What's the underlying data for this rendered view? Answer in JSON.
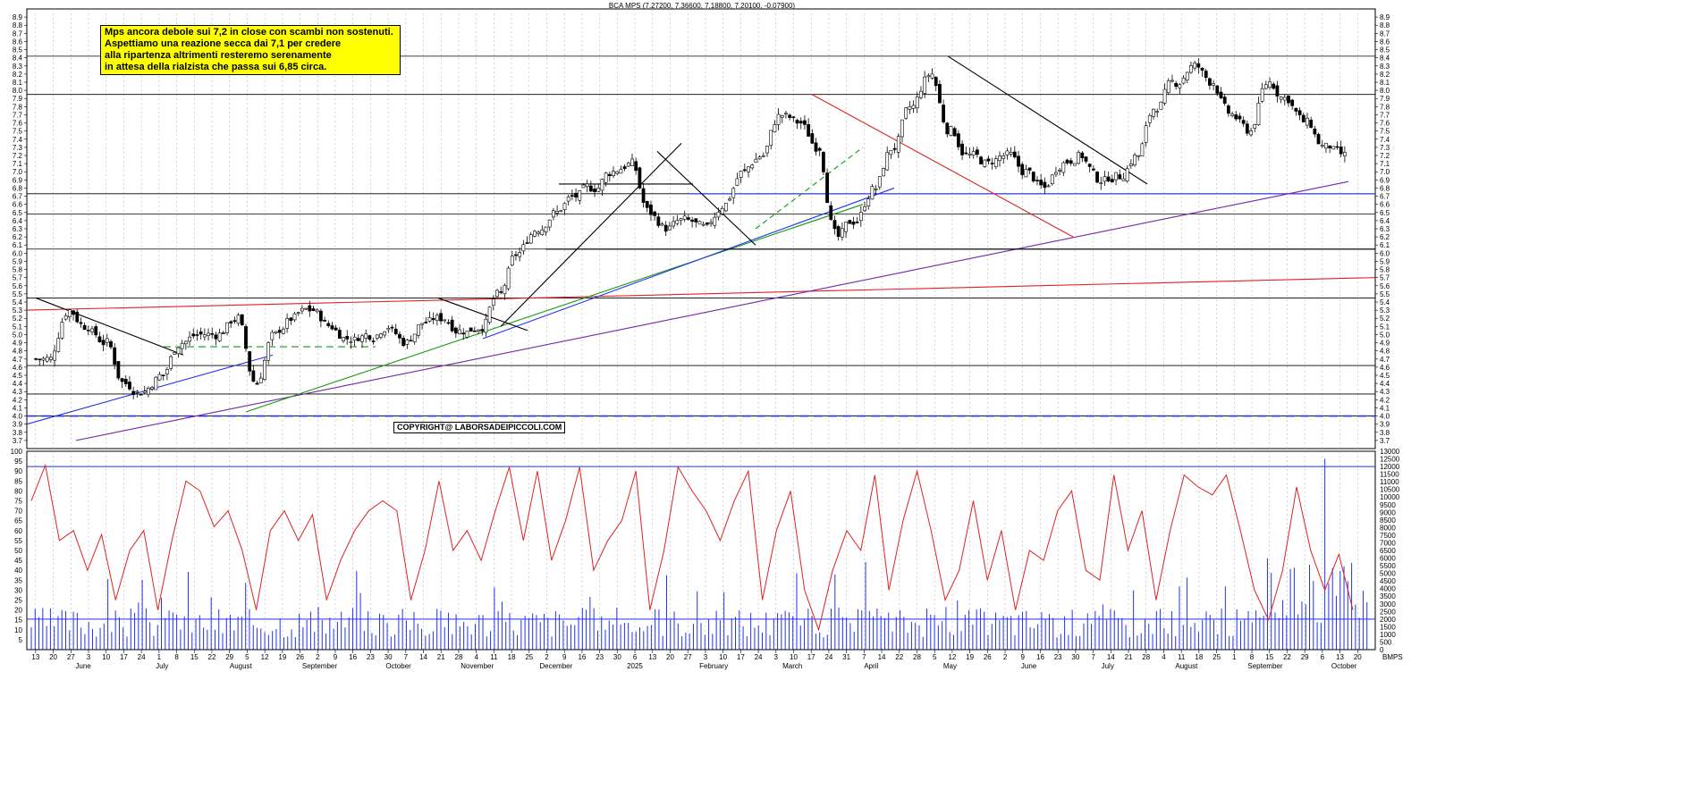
{
  "chart_data": [
    {
      "type": "candlestick",
      "title": "BCA MPS (7.27200, 7.36600, 7.18800, 7.20100, -0.07900)",
      "ylim": [
        3.6,
        9.0
      ],
      "y_ticks": [
        "3.7",
        "3.8",
        "3.9",
        "4.0",
        "4.1",
        "4.2",
        "4.3",
        "4.4",
        "4.5",
        "4.6",
        "4.7",
        "4.8",
        "4.9",
        "5.0",
        "5.1",
        "5.2",
        "5.3",
        "5.4",
        "5.5",
        "5.6",
        "5.7",
        "5.8",
        "5.9",
        "6.0",
        "6.1",
        "6.2",
        "6.3",
        "6.4",
        "6.5",
        "6.6",
        "6.7",
        "6.8",
        "6.9",
        "7.0",
        "7.1",
        "7.2",
        "7.3",
        "7.4",
        "7.5",
        "7.6",
        "7.7",
        "7.8",
        "7.9",
        "8.0",
        "8.1",
        "8.2",
        "8.3",
        "8.4",
        "8.5",
        "8.6",
        "8.7",
        "8.8",
        "8.9"
      ],
      "grid": true,
      "approx_weekly_closes": [
        4.7,
        5.3,
        5.1,
        4.9,
        4.4,
        4.3,
        4.5,
        4.9,
        5.0,
        5.0,
        5.2,
        4.4,
        5.0,
        5.2,
        5.3,
        5.1,
        4.95,
        5.0,
        5.1,
        4.9,
        5.15,
        5.2,
        5.05,
        5.1,
        5.5,
        6.0,
        6.3,
        6.5,
        6.7,
        6.8,
        7.0,
        7.1,
        6.5,
        6.3,
        6.4,
        6.3,
        6.6,
        7.0,
        7.2,
        7.7,
        7.6,
        7.3,
        6.2,
        6.4,
        6.8,
        7.3,
        7.8,
        8.2,
        7.5,
        7.2,
        7.1,
        7.2,
        7.0,
        6.8,
        7.1,
        7.2,
        6.9,
        6.95,
        7.2,
        7.8,
        8.1,
        8.3,
        8.1,
        7.7,
        7.5,
        8.1,
        7.9,
        7.6,
        7.3,
        7.2
      ],
      "horizontal_levels": [
        4.0,
        4.27,
        4.62,
        5.45,
        6.05,
        6.48,
        6.73,
        7.95,
        8.42
      ],
      "annotations": {
        "note_lines": [
          "Mps ancora debole sui 7,2 in close con scambi non sostenuti.",
          "Aspettiamo una reazione secca dai 7,1 per credere",
          "alla ripartenza altrimenti resteremo serenamente",
          "in attesa della rialzista che passa sui 6,85 circa."
        ],
        "copyright": "COPYRIGHT@ LABORSADEIPICCOLI.COM"
      }
    },
    {
      "type": "line",
      "name": "oscillator",
      "ylim": [
        0,
        100
      ],
      "y_ticks": [
        "5",
        "10",
        "15",
        "20",
        "25",
        "30",
        "35",
        "40",
        "45",
        "50",
        "55",
        "60",
        "65",
        "70",
        "75",
        "80",
        "85",
        "90",
        "95",
        "100"
      ],
      "reference_levels": [
        20,
        90
      ],
      "approx_values": [
        75,
        93,
        55,
        60,
        40,
        58,
        25,
        50,
        60,
        20,
        55,
        85,
        80,
        62,
        70,
        50,
        20,
        60,
        70,
        55,
        68,
        25,
        45,
        60,
        70,
        75,
        70,
        25,
        50,
        85,
        50,
        60,
        45,
        70,
        92,
        55,
        90,
        45,
        65,
        92,
        40,
        55,
        65,
        90,
        20,
        50,
        92,
        80,
        70,
        55,
        75,
        90,
        25,
        60,
        80,
        30,
        10,
        40,
        60,
        50,
        88,
        30,
        65,
        90,
        60,
        25,
        40,
        75,
        35,
        60,
        20,
        50,
        45,
        70,
        80,
        40,
        35,
        88,
        50,
        70,
        25,
        60,
        88,
        82,
        78,
        88,
        60,
        30,
        15,
        40,
        82,
        50,
        30,
        48,
        20
      ]
    },
    {
      "type": "bar",
      "name": "volume",
      "ylim": [
        0,
        13000
      ],
      "y_ticks": [
        "0",
        "500",
        "1000",
        "1500",
        "2000",
        "2500",
        "3000",
        "3500",
        "4000",
        "4500",
        "5000",
        "5500",
        "6000",
        "6500",
        "7000",
        "7500",
        "8000",
        "8500",
        "9000",
        "9500",
        "10000",
        "10500",
        "11000",
        "11500",
        "12000",
        "12500",
        "13000"
      ],
      "reference_levels": [
        2000,
        12000
      ]
    }
  ],
  "x_axis": {
    "day_ticks": [
      "13",
      "20",
      "27",
      "3",
      "10",
      "17",
      "24",
      "1",
      "8",
      "15",
      "22",
      "29",
      "5",
      "12",
      "19",
      "26",
      "2",
      "9",
      "16",
      "23",
      "30",
      "7",
      "14",
      "21",
      "28",
      "4",
      "11",
      "18",
      "25",
      "2",
      "9",
      "16",
      "23",
      "30",
      "6",
      "13",
      "20",
      "27",
      "3",
      "10",
      "17",
      "24",
      "3",
      "10",
      "17",
      "24",
      "31",
      "7",
      "14",
      "22",
      "28",
      "5",
      "12",
      "19",
      "26",
      "2",
      "9",
      "16",
      "23",
      "30",
      "7",
      "14",
      "21",
      "28",
      "4",
      "11",
      "18",
      "25",
      "1",
      "8",
      "15",
      "22",
      "29",
      "6",
      "13",
      "20"
    ],
    "month_labels": [
      "June",
      "July",
      "August",
      "September",
      "October",
      "November",
      "December",
      "2025",
      "February",
      "March",
      "April",
      "May",
      "June",
      "July",
      "August",
      "September",
      "October"
    ],
    "corner_label": "BMPS"
  },
  "header": {
    "title": "BCA MPS (7.27200, 7.36600, 7.18800, 7.20100, -0.07900)"
  }
}
